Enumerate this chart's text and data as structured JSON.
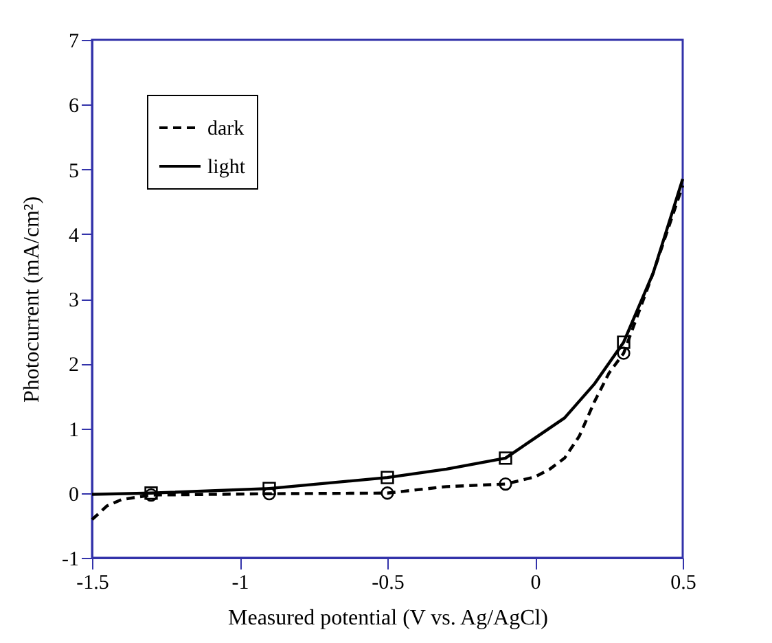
{
  "chart_data": {
    "type": "line",
    "xlabel": "Measured potential (V vs. Ag/AgCl)",
    "ylabel": "Photocurrent  (mA/cm²)",
    "xlim": [
      -1.5,
      0.5
    ],
    "xticks": [
      -1.5,
      -1,
      -0.5,
      0,
      0.5
    ],
    "ylim": [
      -1,
      7
    ],
    "yticks": [
      -1,
      0,
      1,
      2,
      3,
      4,
      5,
      6,
      7
    ],
    "grid": false,
    "legend": "top left",
    "series": [
      {
        "name": "dark",
        "color": "#000000",
        "line_style": "dashed",
        "x": [
          -1.5,
          -1.45,
          -1.4,
          -1.3,
          -0.9,
          -0.5,
          -0.3,
          -0.1,
          0,
          0.05,
          0.1,
          0.15,
          0.2,
          0.25,
          0.3,
          0.4,
          0.5
        ],
        "values": [
          -0.41,
          -0.2,
          -0.1,
          -0.03,
          -0.01,
          0.0,
          0.1,
          0.14,
          0.25,
          0.37,
          0.54,
          0.88,
          1.4,
          1.85,
          2.16,
          3.4,
          4.75
        ]
      },
      {
        "name": "light",
        "color": "#000000",
        "line_style": "solid",
        "x": [
          -1.5,
          -1.3,
          -0.9,
          -0.5,
          -0.3,
          -0.1,
          0,
          0.1,
          0.2,
          0.3,
          0.4,
          0.5
        ],
        "values": [
          -0.02,
          0.0,
          0.07,
          0.24,
          0.37,
          0.54,
          0.85,
          1.16,
          1.68,
          2.33,
          3.4,
          4.85
        ]
      },
      {
        "type": "scatter",
        "color": "#000000",
        "marker": "circle",
        "x": [
          -1.3,
          -0.9,
          -0.5,
          -0.1,
          0.3
        ],
        "values": [
          -0.03,
          -0.01,
          0.0,
          0.14,
          2.16
        ]
      },
      {
        "type": "scatter",
        "color": "#000000",
        "marker": "square",
        "x": [
          -1.3,
          -0.9,
          -0.5,
          -0.1,
          0.3
        ],
        "values": [
          0.0,
          0.07,
          0.24,
          0.54,
          2.33
        ]
      }
    ]
  }
}
